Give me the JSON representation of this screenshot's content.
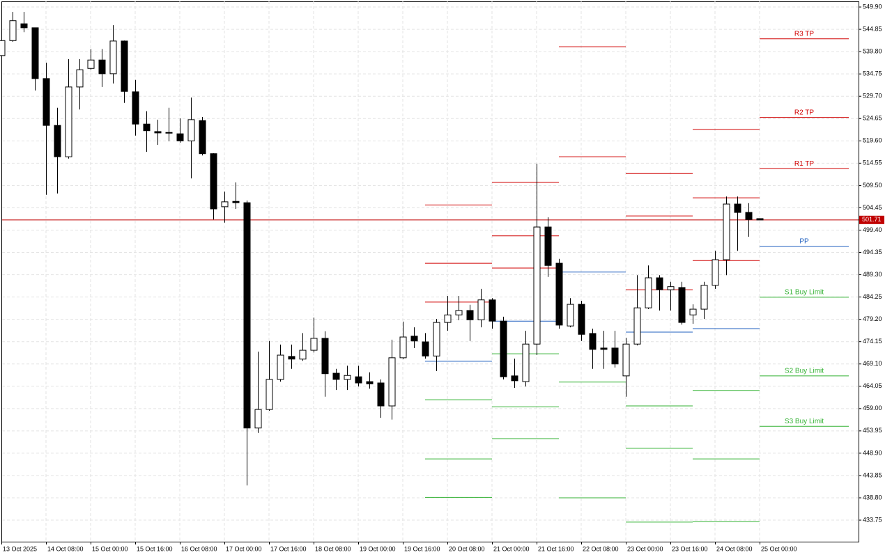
{
  "chart_data": {
    "type": "candlestick",
    "categories": [
      "13 Oct 2025",
      null,
      null,
      null,
      "14 Oct 08:00",
      null,
      null,
      null,
      "15 Oct 00:00",
      null,
      null,
      null,
      "15 Oct 16:00",
      null,
      null,
      null,
      "16 Oct 08:00",
      null,
      null,
      null,
      "17 Oct 00:00",
      null,
      null,
      null,
      "17 Oct 16:00",
      null,
      null,
      null,
      "18 Oct 08:00",
      null,
      null,
      null,
      "19 Oct 00:00",
      null,
      null,
      null,
      "19 Oct 16:00",
      null,
      null,
      null,
      "20 Oct 08:00",
      null,
      null,
      null,
      "21 Oct 00:00",
      null,
      null,
      null,
      "21 Oct 16:00",
      null,
      null,
      null,
      "22 Oct 08:00",
      null,
      null,
      null,
      "23 Oct 00:00",
      null,
      null,
      null,
      "23 Oct 16:00",
      null,
      null,
      null,
      "24 Oct 08:00",
      null,
      null,
      null,
      "25 Oct 00:00"
    ],
    "open": [
      538.9,
      542.3,
      546.1,
      545.2,
      533.7,
      523.1,
      516.0,
      531.8,
      536.0,
      537.9,
      534.8,
      542.2,
      530.7,
      523.4,
      521.7,
      521.5,
      521.2,
      519.6,
      524.2,
      516.7,
      504.7,
      505.9,
      505.6,
      454.6,
      458.8,
      465.6,
      470.8,
      470.2,
      472.2,
      474.9,
      467.0,
      465.6,
      466.2,
      465.1,
      464.8,
      459.6,
      470.5,
      475.4,
      474.1,
      470.9,
      478.5,
      480.2,
      481.2,
      479.1,
      483.6,
      478.8,
      466.4,
      465.1,
      473.6,
      500.1,
      491.9,
      477.7,
      482.6,
      476.0,
      472.7,
      472.7,
      466.4,
      473.6,
      481.8,
      488.6,
      485.9,
      486.4,
      480.2,
      481.5,
      486.9,
      492.7,
      505.3,
      503.4,
      502.0
    ],
    "high": [
      542.8,
      548.8,
      548.8,
      545.2,
      537.3,
      527.1,
      538.1,
      538.1,
      540.4,
      540.4,
      545.8,
      542.3,
      533.4,
      526.3,
      524.4,
      527.1,
      524.7,
      529.4,
      525.0,
      516.8,
      508.1,
      510.2,
      506.1,
      471.9,
      474.3,
      473.5,
      473.5,
      476.1,
      479.6,
      476.5,
      468.0,
      468.7,
      468.7,
      467.2,
      465.6,
      474.6,
      478.7,
      477.4,
      476.1,
      479.3,
      484.5,
      484.5,
      482.5,
      486.1,
      484.0,
      479.8,
      470.3,
      476.6,
      514.4,
      502.3,
      492.9,
      484.0,
      483.4,
      477.1,
      476.6,
      476.6,
      475.0,
      489.2,
      491.4,
      489.2,
      487.7,
      487.7,
      482.6,
      487.7,
      494.7,
      507.0,
      507.0,
      505.5,
      502.0
    ],
    "low": [
      538.1,
      542.0,
      544.2,
      531.0,
      507.4,
      507.7,
      515.6,
      526.7,
      535.7,
      531.8,
      532.6,
      528.2,
      520.8,
      517.1,
      518.7,
      519.5,
      519.2,
      511.1,
      516.3,
      501.8,
      501.1,
      504.2,
      441.6,
      453.5,
      458.5,
      465.1,
      468.0,
      469.8,
      471.7,
      461.7,
      463.2,
      463.2,
      464.0,
      463.5,
      456.9,
      456.5,
      470.2,
      472.7,
      470.3,
      467.5,
      476.6,
      479.0,
      474.3,
      477.4,
      477.1,
      465.6,
      463.7,
      464.0,
      471.1,
      488.8,
      477.1,
      477.4,
      474.3,
      468.0,
      468.0,
      468.3,
      461.7,
      473.3,
      481.5,
      481.2,
      481.2,
      478.0,
      478.2,
      479.3,
      486.1,
      489.2,
      494.7,
      497.9,
      501.7
    ],
    "close": [
      542.3,
      546.8,
      545.2,
      533.7,
      523.1,
      516.0,
      531.8,
      535.7,
      537.9,
      534.8,
      542.2,
      530.8,
      523.4,
      521.9,
      521.4,
      521.4,
      519.6,
      524.4,
      516.7,
      504.2,
      505.8,
      505.6,
      454.6,
      458.8,
      465.6,
      471.1,
      470.2,
      472.2,
      474.9,
      466.9,
      465.6,
      466.5,
      464.8,
      464.6,
      459.6,
      470.5,
      475.2,
      474.3,
      470.9,
      478.5,
      480.2,
      481.2,
      479.1,
      483.6,
      478.8,
      466.2,
      465.3,
      473.6,
      500.1,
      491.4,
      477.9,
      482.6,
      475.8,
      472.4,
      472.4,
      469.1,
      473.6,
      481.8,
      488.6,
      485.9,
      486.6,
      478.5,
      481.5,
      486.9,
      492.7,
      505.3,
      503.4,
      501.8,
      501.7
    ],
    "up_color": "#ffffff",
    "down_color": "#000000",
    "ylim": [
      428.87,
      551.17
    ],
    "yticks": [
      {
        "value": 549.9,
        "label": "549.90"
      },
      544.85,
      {
        "value": 539.8,
        "label": "539.80"
      },
      534.75,
      {
        "value": 529.7,
        "label": "529.70"
      },
      524.65,
      {
        "value": 519.6,
        "label": "519.60"
      },
      514.55,
      {
        "value": 509.5,
        "label": "509.50"
      },
      504.45,
      {
        "value": 499.4,
        "label": "499.40"
      },
      494.35,
      {
        "value": 489.3,
        "label": "489.30"
      },
      484.25,
      {
        "value": 479.2,
        "label": "479.20"
      },
      474.15,
      {
        "value": 469.1,
        "label": "469.10"
      },
      464.05,
      {
        "value": 459,
        "label": "459.00"
      },
      453.95,
      {
        "value": 448.9,
        "label": "448.90"
      },
      443.85,
      {
        "value": 438.8,
        "label": "438.80"
      },
      433.75
    ],
    "grid": true,
    "current_price": 501.71,
    "current_price_color": "#c00000",
    "resistance_color": "#d00000",
    "pivot_color": "#1f5fbf",
    "support_color": "#33b233",
    "levels": [
      {
        "resistance": [
          505.1,
          491.9,
          483.1
        ],
        "pivot": [
          469.7
        ],
        "support": [
          461.0,
          447.6,
          438.9
        ]
      },
      {
        "resistance": [
          510.2,
          498.1,
          490.8
        ],
        "pivot": [
          478.8
        ],
        "support": [
          471.4,
          459.4,
          452.2
        ]
      },
      {
        "resistance": [
          540.9,
          516.0
        ],
        "pivot": [
          489.9
        ],
        "support": [
          465.0,
          438.8
        ]
      },
      {
        "resistance": [
          512.2,
          502.6,
          485.9
        ],
        "pivot": [
          476.3
        ],
        "support": [
          459.6,
          450.0,
          433.3
        ]
      },
      {
        "resistance": [
          522.2,
          506.7,
          492.5
        ],
        "pivot": [
          477.1
        ],
        "support": [
          463.1,
          447.6,
          433.4
        ]
      },
      {
        "resistance": [
          542.7,
          524.9,
          513.3
        ],
        "pivot": [
          495.7
        ],
        "support": [
          484.2,
          466.4,
          455.0
        ],
        "resistance_labels": [
          "R3 TP",
          "R2 TP",
          "R1 TP"
        ],
        "pivot_labels": [
          "PP"
        ],
        "support_labels": [
          "S1 Buy Limit",
          "S2 Buy Limit",
          "S3 Buy Limit"
        ]
      }
    ]
  }
}
